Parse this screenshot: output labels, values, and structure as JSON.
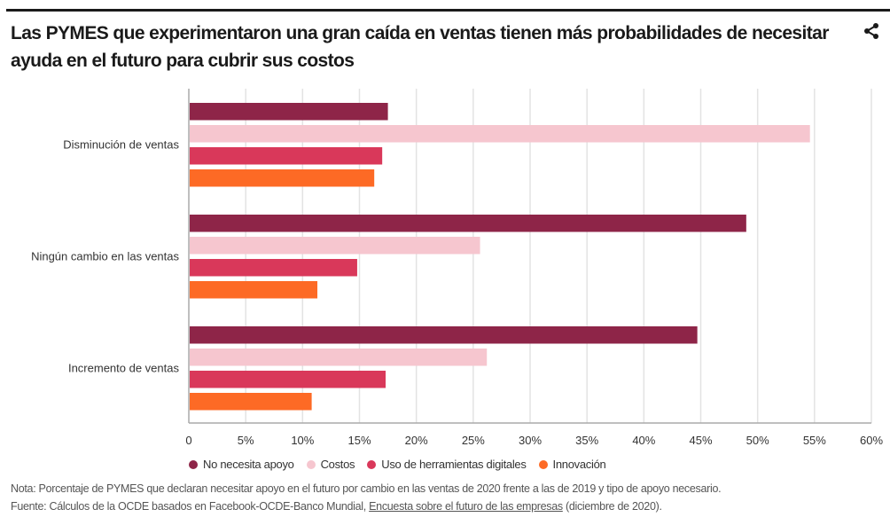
{
  "header": {
    "title": "Las PYMES que experimentaron una gran caída en ventas tienen más probabilidades de necesitar ayuda en el futuro para cubrir sus costos",
    "share_icon": "share-icon"
  },
  "chart_data": {
    "type": "bar",
    "orientation": "horizontal",
    "title": "Las PYMES que experimentaron una gran caída en ventas tienen más probabilidades de necesitar ayuda en el futuro para cubrir sus costos",
    "categories": [
      "Disminución de ventas",
      "Ningún cambio en las ventas",
      "Incremento de ventas"
    ],
    "series": [
      {
        "name": "No necesita apoyo",
        "color": "#8e2548",
        "values": [
          17.5,
          49.0,
          44.7
        ]
      },
      {
        "name": "Costos",
        "color": "#f6c6cf",
        "values": [
          54.6,
          25.6,
          26.2
        ]
      },
      {
        "name": "Uso de herramientas digitales",
        "color": "#d9385a",
        "values": [
          17.0,
          14.8,
          17.3
        ]
      },
      {
        "name": "Innovación",
        "color": "#fd6a25",
        "values": [
          16.3,
          11.3,
          10.8
        ]
      }
    ],
    "xlim": [
      0,
      60
    ],
    "xticks": [
      0,
      5,
      10,
      15,
      20,
      25,
      30,
      35,
      40,
      45,
      50,
      55,
      60
    ],
    "xtick_labels": [
      "0",
      "5%",
      "10%",
      "15%",
      "20%",
      "25%",
      "30%",
      "35%",
      "40%",
      "45%",
      "50%",
      "55%",
      "60%"
    ],
    "xlabel": "",
    "ylabel": "",
    "grid": true,
    "legend_position": "bottom"
  },
  "footer": {
    "note": "Nota: Porcentaje de PYMES que declaran necesitar apoyo en el futuro por cambio en las ventas de 2020 frente a las de 2019 y tipo de apoyo necesario.",
    "source_prefix": "Fuente: Cálculos de la OCDE basados en Facebook-OCDE-Banco Mundial, ",
    "source_link": "Encuesta sobre el futuro de las empresas",
    "source_suffix": " (diciembre de 2020)."
  }
}
